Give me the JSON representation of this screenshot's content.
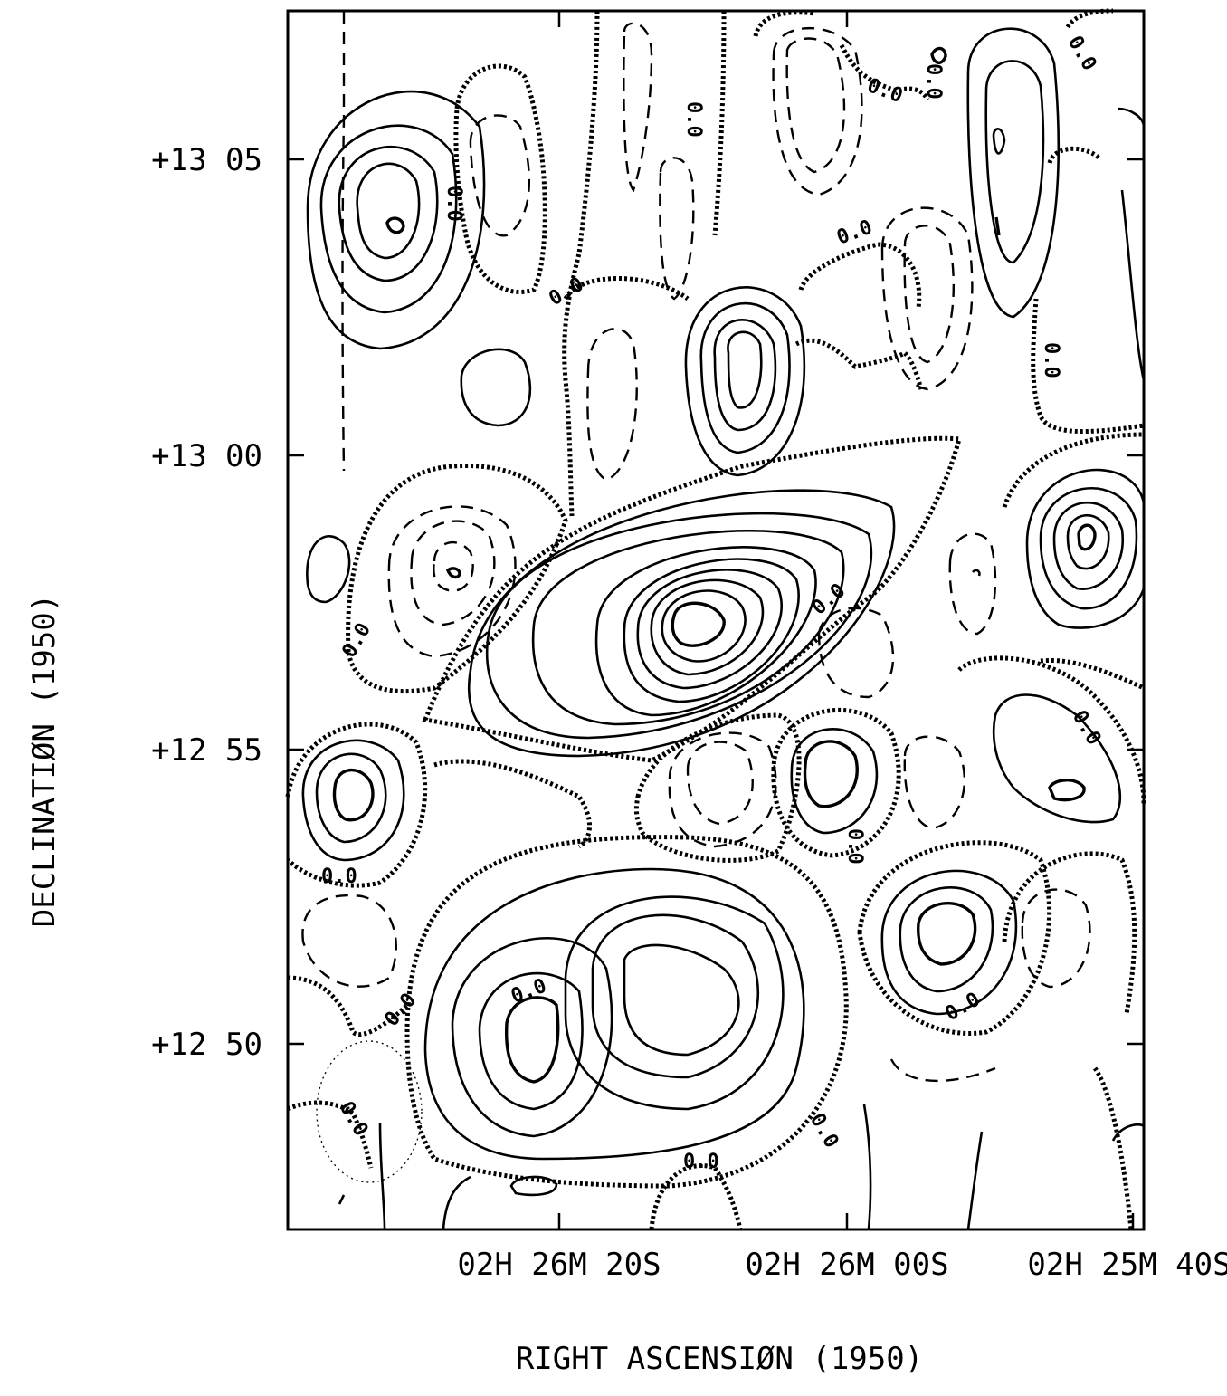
{
  "chart_data": {
    "type": "contour",
    "xlabel": "RIGHT ASCENSIØN (1950)",
    "ylabel": "DECLINATIØN (1950)",
    "x_ticks": [
      "02H 26M 20S",
      "02H 26M 00S",
      "02H 25M 40S"
    ],
    "y_ticks": [
      "+13  05",
      "+13  00",
      "+12  55",
      "+12  50"
    ],
    "contour_label": "0.0",
    "grid": false,
    "legend": "none"
  }
}
